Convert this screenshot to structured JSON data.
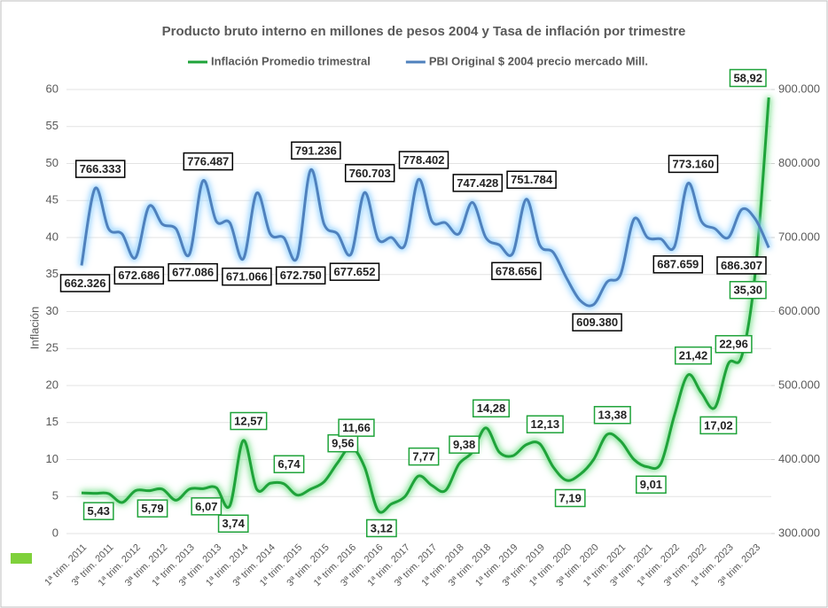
{
  "chart_data": {
    "type": "line",
    "title": "Producto bruto interno en millones de pesos 2004 y Tasa de inflación por trimestre",
    "ylabel": "Inflación",
    "categories": [
      "1ª trim. 2011",
      null,
      "3ª trim. 2011",
      null,
      "1ª trim. 2012",
      null,
      "3ª trim. 2012",
      null,
      "1ª trim. 2013",
      null,
      "3ª trim. 2013",
      null,
      "1ª trim. 2014",
      null,
      "3ª trim. 2014",
      null,
      "1ª trim. 2015",
      null,
      "3ª trim. 2015",
      null,
      "1ª trim. 2016",
      null,
      "3ª trim. 2016",
      null,
      "1ª trim. 2017",
      null,
      "3ª trim. 2017",
      null,
      "1ª trim. 2018",
      null,
      "3ª trim. 2018",
      null,
      "1ª trim. 2019",
      null,
      "3ª trim. 2019",
      null,
      "1ª trim. 2020",
      null,
      "3ª trim. 2020",
      null,
      "1ª trim. 2021",
      null,
      "3ª trim. 2021",
      null,
      "1ª trim. 2022",
      null,
      "3ª trim. 2022",
      null,
      "1ª trim. 2023",
      null,
      "3ª trim. 2023",
      null
    ],
    "ylim": [
      0,
      60
    ],
    "yticks": [
      0,
      5,
      10,
      15,
      20,
      25,
      30,
      35,
      40,
      45,
      50,
      55,
      60
    ],
    "y2lim": [
      300000,
      900000
    ],
    "y2ticks": [
      {
        "value": 300000,
        "label": "300.000"
      },
      {
        "value": 400000,
        "label": "400.000"
      },
      {
        "value": 500000,
        "label": "500.000"
      },
      {
        "value": 600000,
        "label": "600.000"
      },
      {
        "value": 700000,
        "label": "700.000"
      },
      {
        "value": 800000,
        "label": "800.000"
      },
      {
        "value": 900000,
        "label": "900.000"
      }
    ],
    "series": [
      {
        "name": "Inflación Promedio trimestral",
        "color": "#1fa33a",
        "values": [
          5.5,
          5.43,
          5.4,
          4.2,
          5.8,
          5.79,
          6,
          4.5,
          6,
          6.07,
          6.2,
          3.74,
          12.57,
          6,
          6.8,
          6.74,
          5.2,
          6,
          7,
          9.56,
          11.66,
          9,
          3.12,
          4,
          5,
          7.77,
          6.5,
          5.8,
          9.38,
          11,
          14.28,
          11,
          10.5,
          12,
          12.13,
          9,
          7.19,
          8,
          10,
          13.38,
          12.5,
          10,
          9.01,
          9.5,
          16,
          21.42,
          19,
          17.02,
          22.96,
          24,
          35.3,
          58.92
        ],
        "value_labels": [
          null,
          "5,43",
          null,
          null,
          null,
          "5,79",
          null,
          null,
          null,
          "6,07",
          null,
          "3,74",
          "12,57",
          null,
          null,
          "6,74",
          null,
          null,
          null,
          "9,56",
          "11,66",
          null,
          "3,12",
          null,
          null,
          "7,77",
          null,
          null,
          "9,38",
          null,
          "14,28",
          null,
          null,
          null,
          "12,13",
          null,
          "7,19",
          null,
          null,
          "13,38",
          null,
          null,
          "9,01",
          null,
          null,
          "21,42",
          null,
          "17,02",
          "22,96",
          null,
          "35,30",
          "58,92"
        ]
      },
      {
        "name": "PBI Original $ 2004 precio mercado Mill.",
        "color": "#4f81bd",
        "axis": "y2",
        "values": [
          662326,
          766333,
          712000,
          705000,
          672686,
          742000,
          718000,
          712000,
          677086,
          776487,
          722000,
          720000,
          671066,
          760000,
          705000,
          700000,
          672750,
          791236,
          718000,
          705000,
          677652,
          760703,
          698000,
          700000,
          690000,
          778402,
          722000,
          720000,
          705000,
          747428,
          700000,
          690000,
          678656,
          751784,
          690000,
          680000,
          645000,
          615000,
          609380,
          640000,
          650000,
          725000,
          700000,
          698000,
          687659,
          773160,
          722000,
          712000,
          700000,
          738000,
          725000,
          686307
        ],
        "value_labels": [
          "662.326",
          "766.333",
          null,
          null,
          "672.686",
          null,
          null,
          null,
          "677.086",
          "776.487",
          null,
          null,
          "671.066",
          null,
          null,
          null,
          "672.750",
          "791.236",
          null,
          null,
          "677.652",
          "760.703",
          null,
          null,
          null,
          "778.402",
          null,
          null,
          null,
          "747.428",
          null,
          null,
          "678.656",
          "751.784",
          null,
          null,
          null,
          null,
          "609.380",
          null,
          null,
          null,
          null,
          null,
          "687.659",
          "773.160",
          null,
          null,
          null,
          null,
          null,
          "686.307"
        ]
      }
    ]
  }
}
